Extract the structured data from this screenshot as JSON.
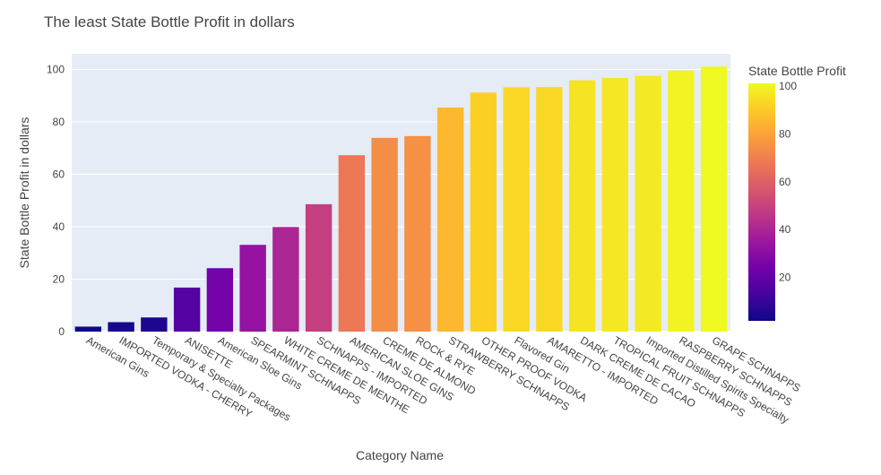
{
  "chart_data": {
    "type": "bar",
    "title": "The least State Bottle Profit in dollars",
    "xlabel": "Category Name",
    "ylabel": "State Bottle Profit in dollars",
    "ylim": [
      0,
      106
    ],
    "yticks": [
      0,
      20,
      40,
      60,
      80,
      100
    ],
    "grid": true,
    "categories": [
      "American Gins",
      "IMPORTED VODKA - CHERRY",
      "Temporary &  Specialty Packages",
      "ANISETTE",
      "American Sloe Gins",
      "SPEARMINT SCHNAPPS",
      "WHITE CREME DE MENTHE",
      "SCHNAPPS - IMPORTED",
      "AMERICAN SLOE GINS",
      "CREME DE ALMOND",
      "ROCK & RYE",
      "STRAWBERRY SCHNAPPS",
      "OTHER PROOF VODKA",
      "Flavored Gin",
      "AMARETTO - IMPORTED",
      "DARK CREME DE CACAO",
      "TROPICAL FRUIT SCHNAPPS",
      "Imported Distilled Spirits Specialty",
      "RASPBERRY SCHNAPPS",
      "GRAPE SCHNAPPS"
    ],
    "values": [
      1.9,
      3.6,
      5.4,
      16.8,
      24.2,
      33.1,
      39.9,
      48.6,
      67.3,
      73.9,
      74.6,
      85.5,
      91.2,
      93.2,
      93.3,
      95.9,
      96.8,
      97.6,
      99.6,
      101.1
    ],
    "colorbar": {
      "title": "State Bottle Profit",
      "range": [
        1.9,
        101.1
      ],
      "ticks": [
        20,
        40,
        60,
        80,
        100
      ],
      "colorscale": [
        "#0d0887",
        "#46039f",
        "#7201a8",
        "#9c179e",
        "#bd3786",
        "#d8576b",
        "#ed7953",
        "#fb9f3a",
        "#fdca26",
        "#f0f921"
      ]
    },
    "colors": {
      "plot_background": "#e5ecf6",
      "gridline": "#ffffff",
      "text": "#444444"
    }
  }
}
